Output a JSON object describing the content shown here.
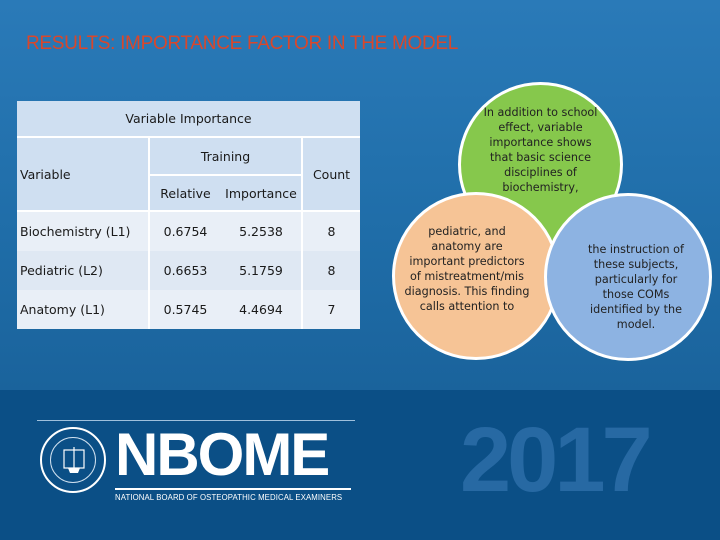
{
  "slide": {
    "title": "RESULTS: IMPORTANCE FACTOR IN THE MODEL"
  },
  "table": {
    "caption": "Variable Importance",
    "col_variable": "Variable",
    "col_group": "Training",
    "col_relative": "Relative",
    "col_importance": "Importance",
    "col_count": "Count",
    "rows": [
      {
        "variable": "Biochemistry (L1)",
        "relative": "0.6754",
        "importance": "5.2538",
        "count": "8"
      },
      {
        "variable": "Pediatric (L2)",
        "relative": "0.6653",
        "importance": "5.1759",
        "count": "8"
      },
      {
        "variable": "Anatomy (L1)",
        "relative": "0.5745",
        "importance": "4.4694",
        "count": "7"
      }
    ]
  },
  "venn": {
    "green_text": "In addition to school effect, variable importance shows that basic science disciplines of biochemistry,",
    "orange_text": "pediatric, and anatomy are important predictors of mistreatment/mis diagnosis. This finding  calls attention to",
    "blue_text": "the instruction of these subjects, particularly for those COMs identified by the model.",
    "colors": {
      "green": "#86c84c",
      "orange": "#f6c496",
      "blue": "#8db3e2"
    }
  },
  "footer": {
    "logo_text": "NBOME",
    "logo_subtitle": "NATIONAL BOARD OF OSTEOPATHIC MEDICAL EXAMINERS",
    "year": "2017",
    "seal_icon": "nbome-seal-icon"
  },
  "colors": {
    "title": "#d9472b",
    "background_top": "#2a7ab8",
    "background_bottom": "#0b4f86"
  }
}
